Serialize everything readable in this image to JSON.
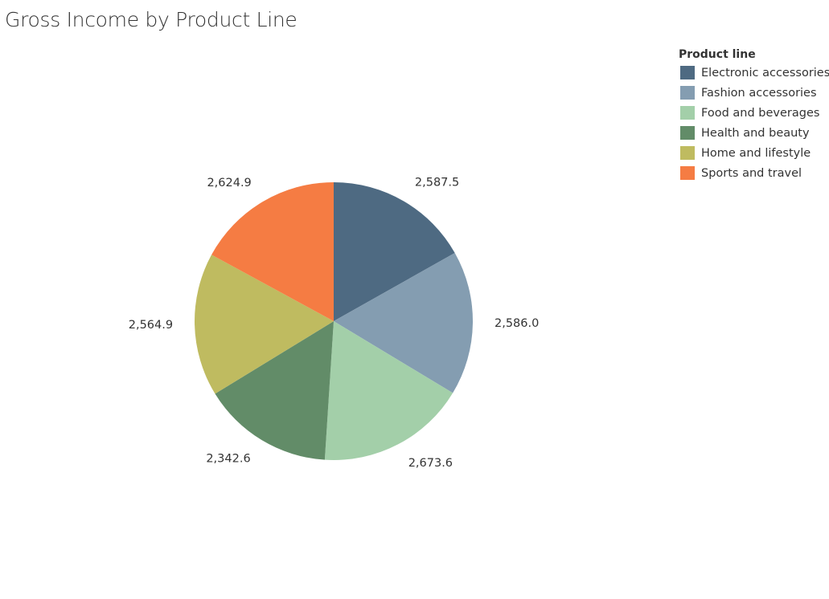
{
  "chart_data": {
    "type": "pie",
    "title": "Gross Income by Product Line",
    "legend_title": "Product line",
    "legend_position": "top-right",
    "slices": [
      {
        "name": "Electronic accessories",
        "value": 2587.5,
        "label": "2,587.5",
        "color": "#4e6a82"
      },
      {
        "name": "Fashion accessories",
        "value": 2586.0,
        "label": "2,586.0",
        "color": "#849db1"
      },
      {
        "name": "Food and beverages",
        "value": 2673.6,
        "label": "2,673.6",
        "color": "#a3cfa9"
      },
      {
        "name": "Health and beauty",
        "value": 2342.6,
        "label": "2,342.6",
        "color": "#628c68"
      },
      {
        "name": "Home and lifestyle",
        "value": 2564.9,
        "label": "2,564.9",
        "color": "#bfbb60"
      },
      {
        "name": "Sports and travel",
        "value": 2624.9,
        "label": "2,624.9",
        "color": "#f57c43"
      }
    ]
  }
}
